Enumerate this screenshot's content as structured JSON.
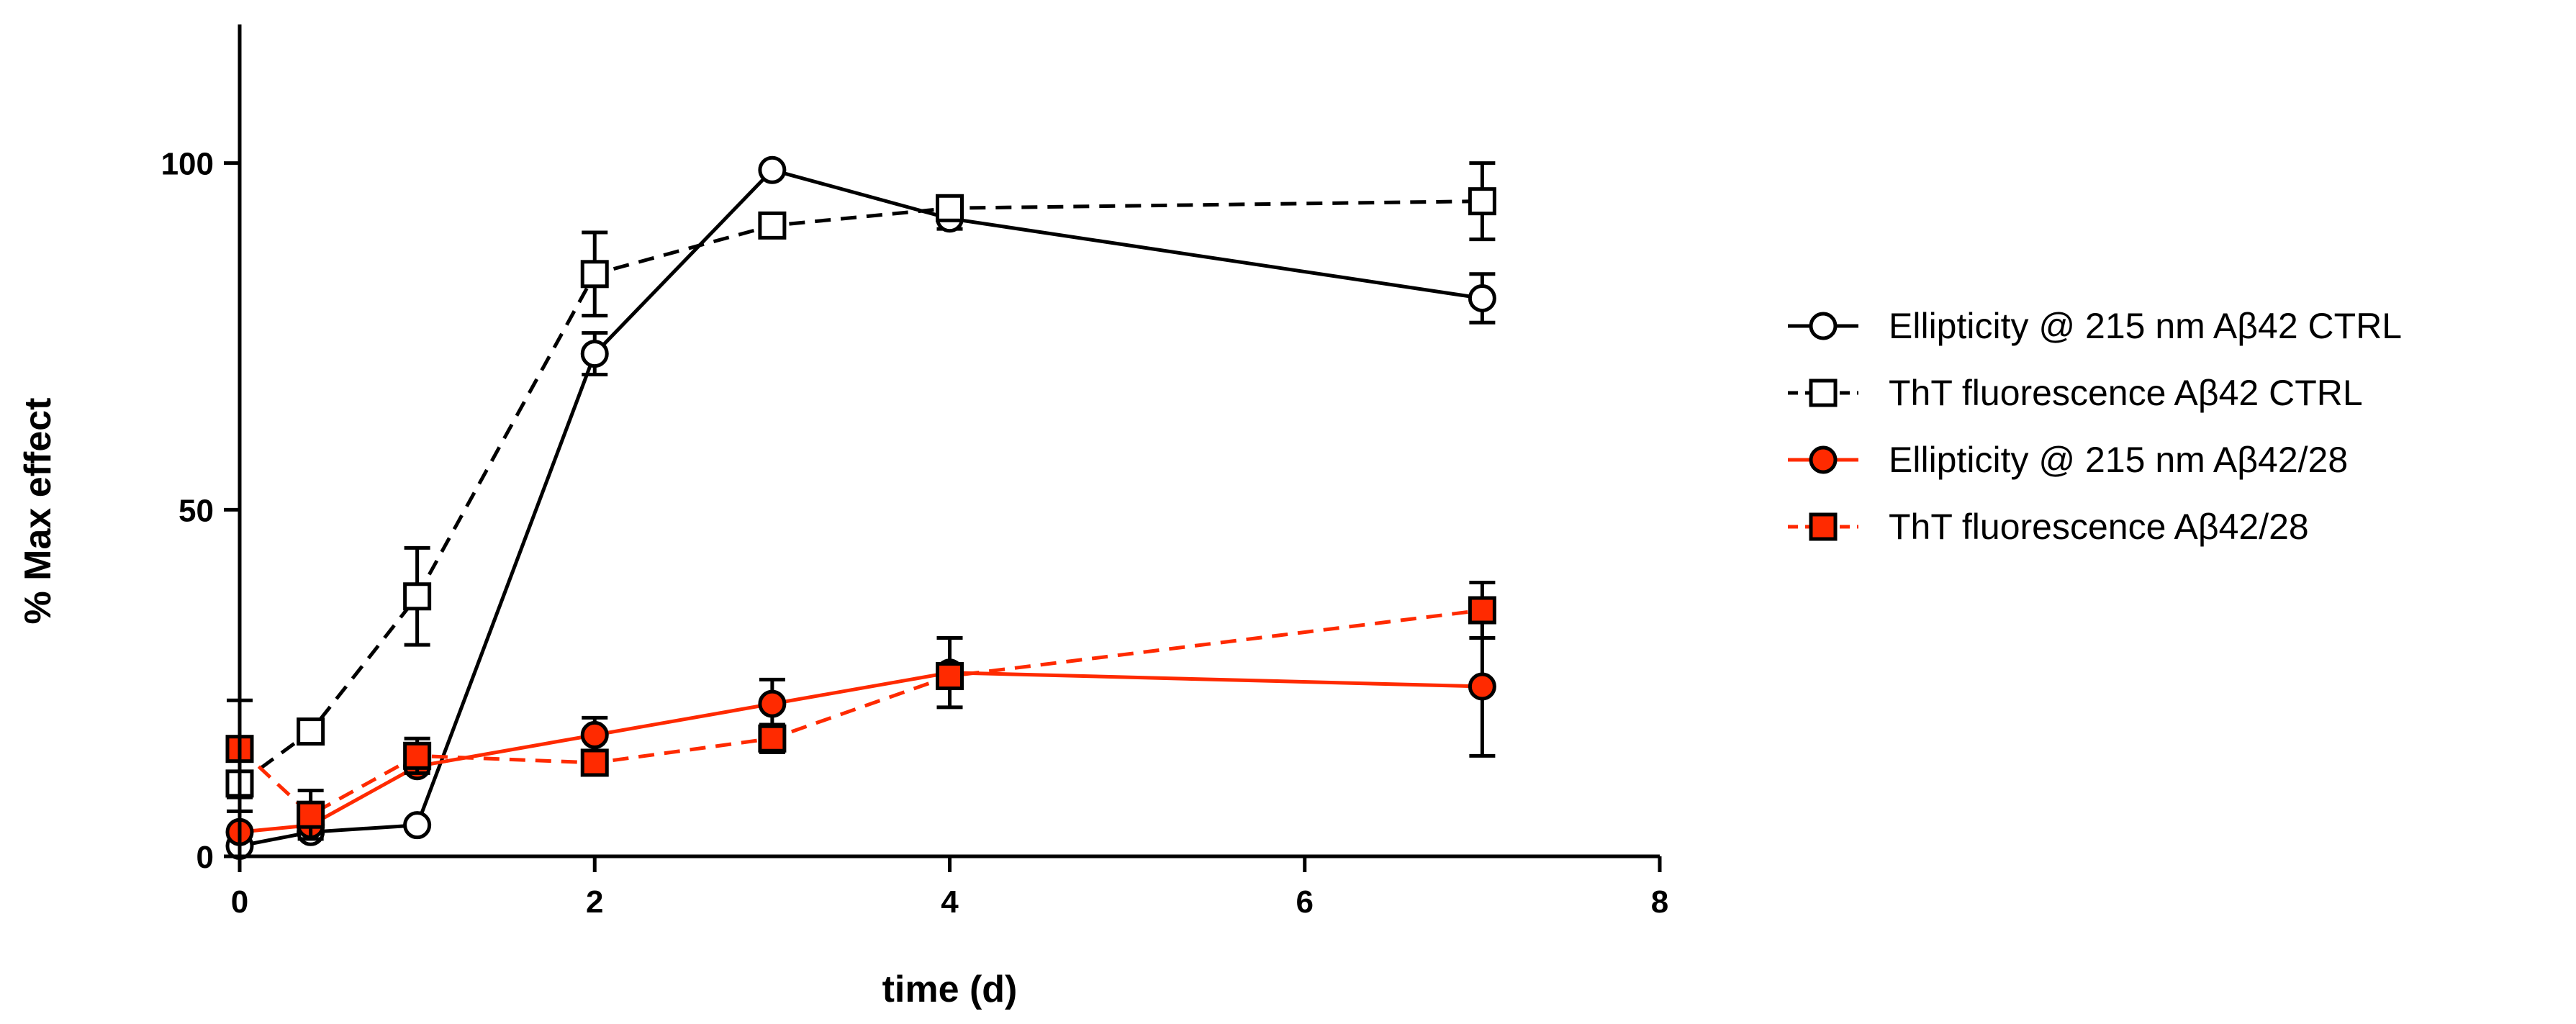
{
  "chart_data": {
    "type": "line",
    "title": "",
    "xlabel": "time (d)",
    "ylabel": "% Max effect",
    "xlim": [
      0,
      8
    ],
    "ylim": [
      0,
      120
    ],
    "xticks": [
      0,
      2,
      4,
      6,
      8
    ],
    "yticks": [
      0,
      50,
      100
    ],
    "grid": false,
    "legend_position": "right",
    "series": [
      {
        "name": "Ellipticity @ 215 nm Aβ42 CTRL",
        "color": "#000000",
        "marker": "circle-open",
        "dash": "solid",
        "x": [
          0,
          0.4,
          1,
          2,
          3,
          4,
          7
        ],
        "y": [
          1.5,
          3.5,
          4.5,
          72.5,
          99,
          92,
          80.5
        ],
        "err": [
          0,
          0,
          0,
          3,
          0,
          1.5,
          3.5
        ]
      },
      {
        "name": "ThT fluorescence Aβ42 CTRL",
        "color": "#000000",
        "marker": "square-open",
        "dash": "dashed",
        "x": [
          0,
          0.4,
          1,
          2,
          3,
          4,
          7
        ],
        "y": [
          10.5,
          18,
          37.5,
          84,
          91,
          93.5,
          94.5
        ],
        "err": [
          4,
          1.5,
          7,
          6,
          0,
          1,
          5.5
        ]
      },
      {
        "name": "Ellipticity @ 215 nm Aβ42/28",
        "color": "#ff2a00",
        "marker": "circle-filled",
        "dash": "solid",
        "x": [
          0,
          0.4,
          1,
          2,
          3,
          4,
          7
        ],
        "y": [
          3.5,
          4.5,
          13,
          17.5,
          22,
          26.5,
          24.5
        ],
        "err": [
          0,
          0,
          0,
          2.5,
          3.5,
          5,
          10
        ]
      },
      {
        "name": "ThT fluorescence Aβ42/28",
        "color": "#ff2a00",
        "marker": "square-filled",
        "dash": "dashed",
        "x": [
          0,
          0.4,
          1,
          2,
          3,
          4,
          7
        ],
        "y": [
          15.5,
          6,
          14.5,
          13.5,
          17,
          26,
          35.5
        ],
        "err": [
          7,
          3.5,
          2.5,
          0,
          2,
          0,
          4
        ]
      }
    ]
  }
}
